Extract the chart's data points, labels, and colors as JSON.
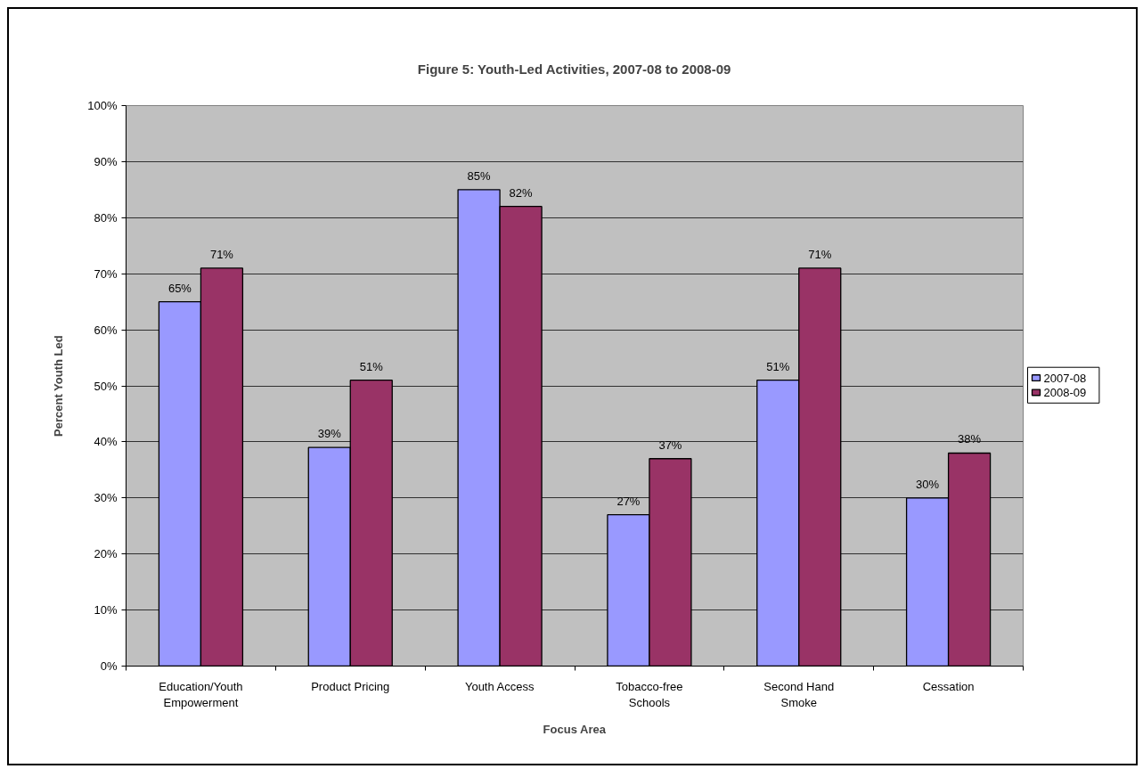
{
  "chart_data": {
    "type": "bar",
    "title": "Figure 5: Youth-Led Activities, 2007-08 to 2008-09",
    "xlabel": "Focus Area",
    "ylabel": "Percent Youth Led",
    "categories": [
      "Education/Youth\nEmpowerment",
      "Product Pricing",
      "Youth Access",
      "Tobacco-free\nSchools",
      "Second Hand\nSmoke",
      "Cessation"
    ],
    "series": [
      {
        "name": "2007-08",
        "color": "#9999ff",
        "values": [
          65,
          39,
          85,
          27,
          51,
          30
        ],
        "value_labels": [
          "65%",
          "39%",
          "85%",
          "27%",
          "51%",
          "30%"
        ]
      },
      {
        "name": "2008-09",
        "color": "#993366",
        "values": [
          71,
          51,
          82,
          37,
          71,
          38
        ],
        "value_labels": [
          "71%",
          "51%",
          "82%",
          "37%",
          "71%",
          "38%"
        ]
      }
    ],
    "ylim": [
      0,
      100
    ],
    "yticks": [
      {
        "value": 0,
        "label": "0%"
      },
      {
        "value": 10,
        "label": "10%"
      },
      {
        "value": 20,
        "label": "20%"
      },
      {
        "value": 30,
        "label": "30%"
      },
      {
        "value": 40,
        "label": "40%"
      },
      {
        "value": 50,
        "label": "50%"
      },
      {
        "value": 60,
        "label": "60%"
      },
      {
        "value": 70,
        "label": "70%"
      },
      {
        "value": 80,
        "label": "80%"
      },
      {
        "value": 90,
        "label": "90%"
      },
      {
        "value": 100,
        "label": "100%"
      }
    ],
    "grid": "y",
    "legend": "right"
  }
}
